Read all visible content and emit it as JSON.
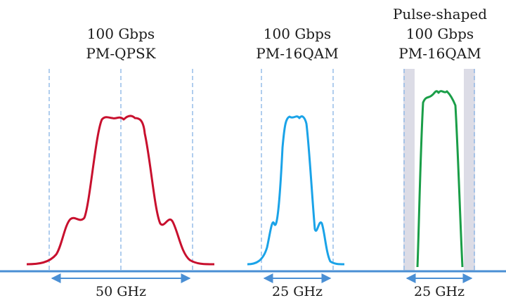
{
  "panels": [
    {
      "id": "qpsk",
      "title_lines": [
        "100 Gbps",
        "PM-QPSK"
      ],
      "bandwidth_label": "50 GHz",
      "color": "#c8102e"
    },
    {
      "id": "16qam",
      "title_lines": [
        "100 Gbps",
        "PM-16QAM"
      ],
      "bandwidth_label": "25 GHz",
      "color": "#1aa3e8"
    },
    {
      "id": "pulse-shaped-16qam",
      "title_lines": [
        "Pulse-shaped",
        "100 Gbps",
        "PM-16QAM"
      ],
      "bandwidth_label": "25 GHz",
      "color": "#1a9e48"
    }
  ],
  "colors": {
    "baseline": "#4a8fd4",
    "guide_dashes": "#8fb8e6",
    "arrow": "#4a8fd4",
    "guard_band_fill": "#dcdce6"
  }
}
